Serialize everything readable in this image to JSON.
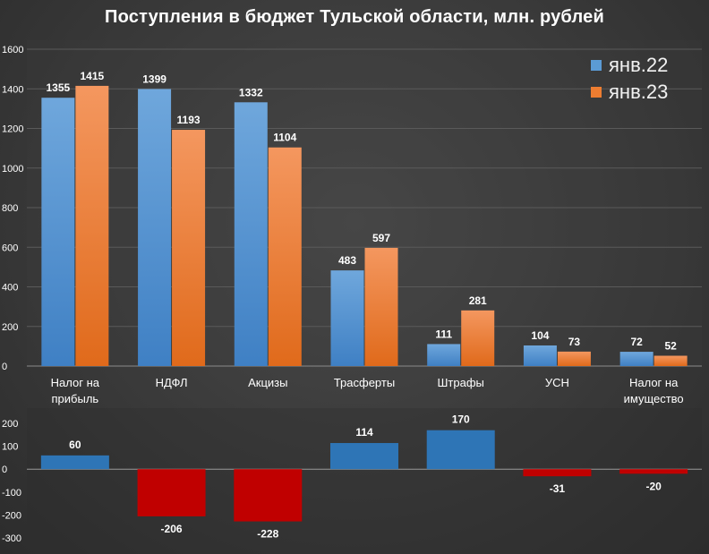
{
  "title": "Поступления в бюджет Тульской области, млн. рублей",
  "colors": {
    "series1": "#5b9bd5",
    "series2": "#ed7d31",
    "positive": "#2e75b6",
    "negative": "#c00000"
  },
  "chart_data": [
    {
      "type": "bar",
      "title": "Поступления в бюджет Тульской области, млн. рублей",
      "categories": [
        [
          "Налог на",
          "прибыль"
        ],
        [
          "НДФЛ"
        ],
        [
          "Акцизы"
        ],
        [
          "Трасферты"
        ],
        [
          "Штрафы"
        ],
        [
          "УСН"
        ],
        [
          "Налог на",
          "имущество"
        ]
      ],
      "series": [
        {
          "name": "янв.22",
          "values": [
            1355,
            1399,
            1332,
            483,
            111,
            104,
            72
          ]
        },
        {
          "name": "янв.23",
          "values": [
            1415,
            1193,
            1104,
            597,
            281,
            73,
            52
          ]
        }
      ],
      "ylim": [
        0,
        1600
      ],
      "yticks": [
        0,
        200,
        400,
        600,
        800,
        1000,
        1200,
        1400,
        1600
      ],
      "legend_position": "top-right",
      "grid": true
    },
    {
      "type": "bar",
      "categories": [
        [
          "Налог на",
          "прибыль"
        ],
        [
          "НДФЛ"
        ],
        [
          "Акцизы"
        ],
        [
          "Трасферты"
        ],
        [
          "Штрафы"
        ],
        [
          "УСН"
        ],
        [
          "Налог на",
          "имущество"
        ]
      ],
      "values": [
        60,
        -206,
        -228,
        114,
        170,
        -31,
        -20
      ],
      "ylim": [
        -300,
        200
      ],
      "yticks": [
        200,
        100,
        0,
        -100,
        -200,
        -300
      ],
      "grid": false
    }
  ]
}
